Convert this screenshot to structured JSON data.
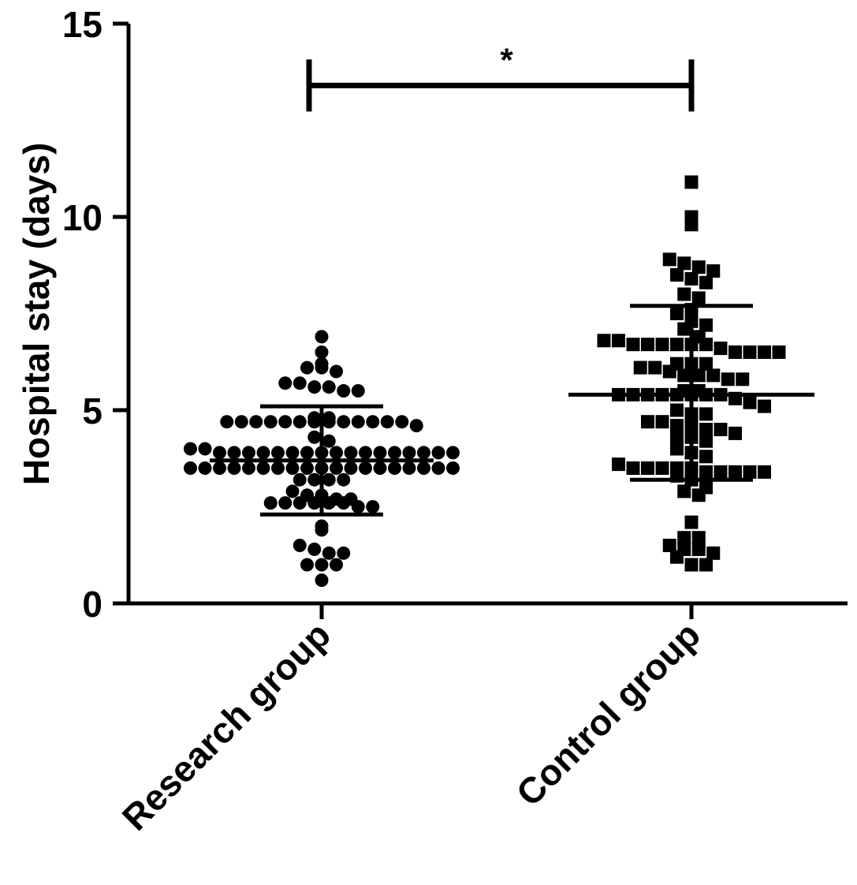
{
  "chart_data": {
    "type": "scatter",
    "xlabel": "",
    "ylabel": "Hospital stay (days)",
    "ylim": [
      0,
      15
    ],
    "yticks": [
      "0",
      "5",
      "10",
      "15"
    ],
    "categories": [
      "Research group",
      "Control group"
    ],
    "series": [
      {
        "marker": "circle",
        "color": "#000000",
        "mean": 3.7,
        "sd_upper": 5.1,
        "sd_lower": 2.3,
        "values": [
          6.9,
          6.5,
          6.2,
          6.1,
          6.1,
          6.0,
          5.7,
          5.7,
          5.6,
          5.6,
          5.5,
          5.5,
          4.8,
          4.8,
          4.7,
          4.7,
          4.7,
          4.7,
          4.7,
          4.7,
          4.7,
          4.7,
          4.7,
          4.7,
          4.7,
          4.7,
          4.7,
          4.6,
          4.3,
          4.2,
          4.0,
          4.0,
          3.9,
          3.9,
          3.9,
          3.9,
          3.9,
          3.9,
          3.9,
          3.9,
          3.9,
          3.9,
          3.9,
          3.9,
          3.9,
          3.9,
          3.9,
          3.9,
          3.9,
          3.5,
          3.5,
          3.5,
          3.5,
          3.5,
          3.5,
          3.5,
          3.5,
          3.5,
          3.5,
          3.5,
          3.5,
          3.5,
          3.5,
          3.5,
          3.5,
          3.5,
          3.5,
          3.5,
          3.2,
          3.2,
          3.2,
          3.2,
          2.9,
          2.8,
          2.8,
          2.7,
          2.7,
          2.6,
          2.6,
          2.6,
          2.6,
          2.6,
          2.6,
          2.5,
          2.5,
          2.0,
          1.9,
          1.5,
          1.4,
          1.3,
          1.3,
          1.0,
          1.0,
          1.0,
          0.6
        ]
      },
      {
        "marker": "square",
        "color": "#000000",
        "mean": 5.4,
        "sd_upper": 7.7,
        "sd_lower": 3.2,
        "values": [
          10.9,
          10.0,
          9.8,
          8.9,
          8.8,
          8.7,
          8.6,
          8.5,
          8.4,
          8.3,
          8.0,
          7.9,
          7.6,
          7.5,
          7.3,
          7.2,
          7.1,
          6.9,
          6.8,
          6.8,
          6.7,
          6.7,
          6.7,
          6.7,
          6.7,
          6.7,
          6.6,
          6.5,
          6.5,
          6.5,
          6.5,
          6.2,
          6.2,
          6.2,
          6.1,
          6.1,
          6.0,
          5.9,
          5.9,
          5.9,
          5.8,
          5.8,
          5.5,
          5.5,
          5.4,
          5.4,
          5.4,
          5.4,
          5.4,
          5.4,
          5.4,
          5.4,
          5.3,
          5.2,
          5.1,
          5.0,
          4.9,
          4.9,
          4.7,
          4.7,
          4.6,
          4.6,
          4.5,
          4.5,
          4.4,
          4.3,
          4.3,
          4.2,
          4.0,
          3.9,
          3.8,
          3.6,
          3.5,
          3.5,
          3.5,
          3.5,
          3.5,
          3.4,
          3.4,
          3.4,
          3.4,
          3.4,
          3.3,
          3.2,
          3.0,
          2.9,
          2.8,
          2.1,
          1.7,
          1.7,
          1.5,
          1.4,
          1.4,
          1.3,
          1.2,
          1.0,
          1.0
        ]
      }
    ],
    "significance": {
      "label": "*",
      "between": [
        "Research group",
        "Control group"
      ],
      "y": 13.4
    }
  }
}
